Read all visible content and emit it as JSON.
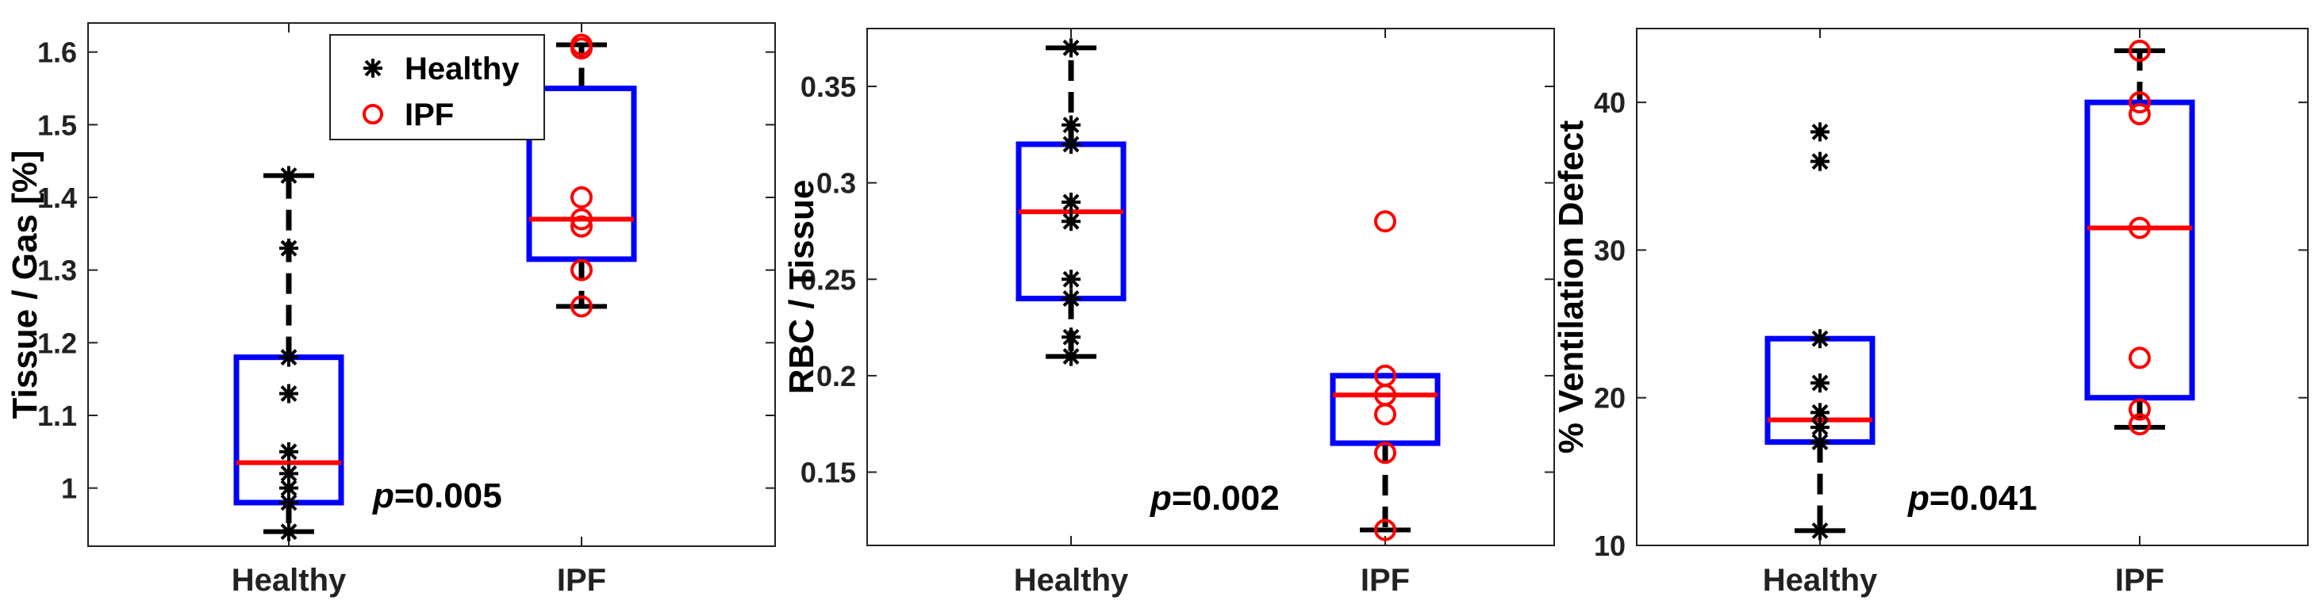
{
  "colors": {
    "box": "#0000ff",
    "median": "#ff0000",
    "healthy_marker": "#000000",
    "ipf_marker": "#ff0000",
    "whisker": "#000000"
  },
  "chart_data": [
    {
      "type": "box",
      "ylabel": "Tissue / Gas [%]",
      "categories": [
        "Healthy",
        "IPF"
      ],
      "ylim": [
        0.92,
        1.64
      ],
      "yticks": [
        1,
        1.1,
        1.2,
        1.3,
        1.4,
        1.5,
        1.6
      ],
      "ytick_labels": [
        "1",
        "1.1",
        "1.2",
        "1.3",
        "1.4",
        "1.5",
        "1.6"
      ],
      "boxes": [
        {
          "name": "Healthy",
          "q1": 0.98,
          "median": 1.035,
          "q3": 1.18,
          "whisker_low": 0.94,
          "whisker_high": 1.43
        },
        {
          "name": "IPF",
          "q1": 1.315,
          "median": 1.37,
          "q3": 1.55,
          "whisker_low": 1.25,
          "whisker_high": 1.61
        }
      ],
      "series": [
        {
          "name": "Healthy",
          "marker": "star",
          "x": "Healthy",
          "values": [
            1.43,
            1.33,
            1.18,
            1.13,
            1.05,
            1.02,
            1.0,
            0.98,
            0.94
          ]
        },
        {
          "name": "IPF",
          "marker": "circle",
          "x": "IPF",
          "values": [
            1.61,
            1.605,
            1.4,
            1.37,
            1.36,
            1.3,
            1.25
          ]
        }
      ],
      "annotation": {
        "p_label": "p",
        "p_value": "=0.005"
      },
      "legend": {
        "placement": "top-right",
        "entries": [
          "Healthy",
          "IPF"
        ]
      }
    },
    {
      "type": "box",
      "ylabel": "RBC / Tissue",
      "categories": [
        "Healthy",
        "IPF"
      ],
      "ylim": [
        0.112,
        0.38
      ],
      "yticks": [
        0.15,
        0.2,
        0.25,
        0.3,
        0.35
      ],
      "ytick_labels": [
        "0.15",
        "0.2",
        "0.25",
        "0.3",
        "0.35"
      ],
      "boxes": [
        {
          "name": "Healthy",
          "q1": 0.24,
          "median": 0.285,
          "q3": 0.32,
          "whisker_low": 0.21,
          "whisker_high": 0.37
        },
        {
          "name": "IPF",
          "q1": 0.165,
          "median": 0.19,
          "q3": 0.2,
          "whisker_low": 0.12,
          "whisker_high": 0.2
        }
      ],
      "series": [
        {
          "name": "Healthy",
          "marker": "star",
          "x": "Healthy",
          "values": [
            0.37,
            0.33,
            0.32,
            0.29,
            0.28,
            0.25,
            0.24,
            0.22,
            0.21
          ]
        },
        {
          "name": "IPF",
          "marker": "circle",
          "x": "IPF",
          "values": [
            0.28,
            0.2,
            0.19,
            0.18,
            0.16,
            0.12
          ]
        }
      ],
      "annotation": {
        "p_label": "p",
        "p_value": "=0.002"
      }
    },
    {
      "type": "box",
      "ylabel": "% Ventilation Defect",
      "categories": [
        "Healthy",
        "IPF"
      ],
      "ylim": [
        10,
        45
      ],
      "yticks": [
        10,
        20,
        30,
        40
      ],
      "ytick_labels": [
        "10",
        "20",
        "30",
        "40"
      ],
      "boxes": [
        {
          "name": "Healthy",
          "q1": 17,
          "median": 18.5,
          "q3": 24,
          "whisker_low": 11,
          "whisker_high": 24
        },
        {
          "name": "IPF",
          "q1": 20,
          "median": 31.5,
          "q3": 40,
          "whisker_low": 18,
          "whisker_high": 43.5
        }
      ],
      "series": [
        {
          "name": "Healthy",
          "marker": "star",
          "x": "Healthy",
          "values": [
            38,
            36,
            24,
            21,
            19,
            18,
            17,
            11
          ]
        },
        {
          "name": "IPF",
          "marker": "circle",
          "x": "IPF",
          "values": [
            43.5,
            40,
            39.2,
            31.5,
            22.7,
            19.2,
            18.2
          ]
        }
      ],
      "annotation": {
        "p_label": "p",
        "p_value": "=0.041"
      }
    }
  ]
}
